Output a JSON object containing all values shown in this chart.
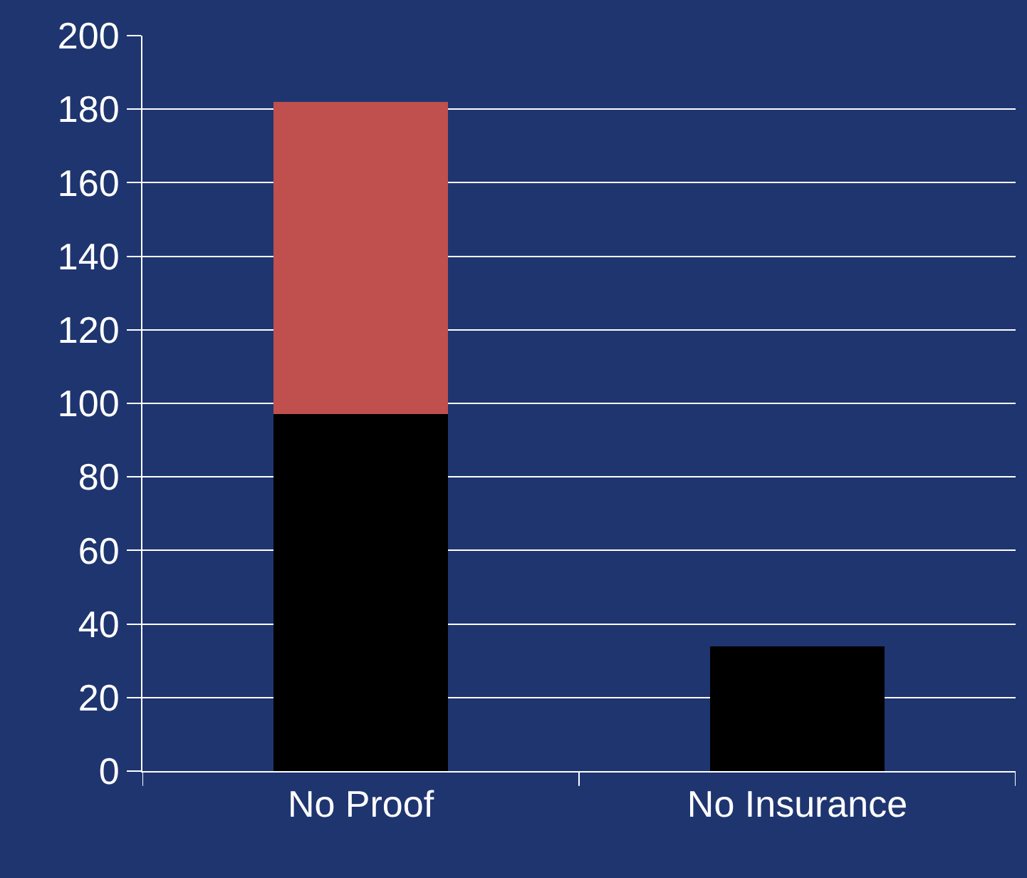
{
  "chart_data": {
    "type": "bar",
    "stacked": true,
    "categories": [
      "No Proof",
      "No Insurance"
    ],
    "series": [
      {
        "color": "#000000",
        "values": [
          97,
          34
        ]
      },
      {
        "color": "#c0504d",
        "values": [
          85,
          null
        ]
      }
    ],
    "ylim": [
      0,
      200
    ],
    "yticks": [
      0,
      20,
      40,
      60,
      80,
      100,
      120,
      140,
      160,
      180,
      200
    ],
    "grid": "y"
  }
}
